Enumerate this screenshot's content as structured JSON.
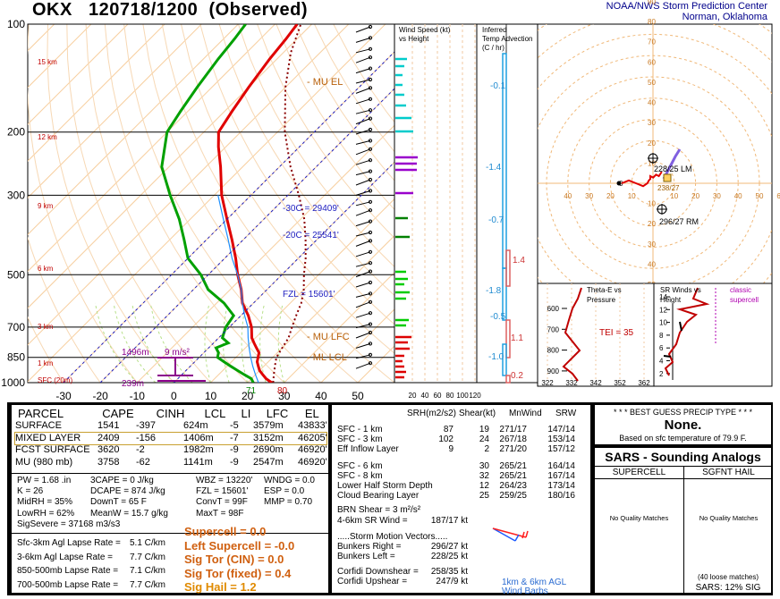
{
  "header": {
    "station": "OKX",
    "datetime": "120718/1200",
    "kind": "(Observed)",
    "org_line1": "NOAA/NWS Storm Prediction Center",
    "org_line2": "Norman, Oklahoma"
  },
  "chart_data": [
    {
      "type": "line",
      "name": "skew-t",
      "y_ticks": [
        100,
        200,
        300,
        500,
        700,
        850,
        1000
      ],
      "x_ticks": [
        -30,
        -20,
        -10,
        0,
        10,
        20,
        30,
        40,
        50
      ],
      "height_labels": [
        "15 km",
        "12 km",
        "9 km",
        "6 km",
        "3 km",
        "1 km",
        "SFC (20m)"
      ],
      "annotations": {
        "mu_el": "MU EL",
        "mu_lfc": "MU LFC",
        "ml_lcl": "ML LCL",
        "c30": "-30C = 29409'",
        "c20": "-20C = 25541'",
        "fzl": "FZL = 15601'",
        "dcape_height": "1496m",
        "dcape_rate": "9 m/s²",
        "sfc_height": "239m",
        "sfc_temp_label": "80",
        "sfc_dew_label": "71"
      },
      "series": [
        {
          "name": "",
          "color": "#e00000",
          "p": [
            1000,
            975,
            950,
            925,
            900,
            875,
            850,
            825,
            800,
            775,
            750,
            700,
            650,
            600,
            550,
            500,
            450,
            400,
            350,
            300,
            250,
            220,
            200,
            175,
            150,
            125,
            110,
            100
          ],
          "t": [
            26.6,
            24,
            22,
            20,
            18.5,
            17,
            16,
            15,
            13,
            11,
            9,
            6,
            2,
            -3,
            -7,
            -12,
            -17,
            -23,
            -30,
            -38,
            -46,
            -52,
            -56,
            -58,
            -60,
            -62,
            -63,
            -64
          ]
        },
        {
          "name": "",
          "color": "#00a000",
          "p": [
            1000,
            975,
            950,
            925,
            900,
            875,
            850,
            825,
            800,
            775,
            750,
            700,
            650,
            600,
            550,
            500,
            450,
            400,
            350,
            300,
            250,
            200,
            175,
            150,
            125,
            110,
            100
          ],
          "t": [
            21.6,
            20,
            17,
            14,
            11,
            8,
            5,
            4,
            2,
            4,
            1,
            -1,
            -2,
            -8,
            -16,
            -22,
            -30,
            -36,
            -43,
            -52,
            -62,
            -70,
            -72,
            -74,
            -76,
            -77,
            -78
          ]
        },
        {
          "name": "",
          "color": "#1e90ff",
          "p": [
            1000,
            950,
            900,
            850,
            800,
            750,
            700,
            650,
            600,
            550,
            500,
            450,
            400,
            350,
            300
          ],
          "t": [
            23,
            20,
            17,
            14,
            11,
            8,
            5,
            1,
            -3,
            -7,
            -12,
            -18,
            -24,
            -31,
            -39
          ]
        },
        {
          "name": "",
          "color": "#8b0000",
          "p": [
            1000,
            950,
            900,
            850,
            800,
            750,
            700,
            650,
            600,
            550,
            500,
            450,
            400,
            350,
            300,
            250,
            200,
            150,
            120,
            100
          ],
          "t": [
            27,
            25,
            23,
            21,
            20,
            19,
            17,
            15,
            13,
            10,
            6,
            2,
            -3,
            -9,
            -17,
            -27,
            -38,
            -50,
            -58,
            -63
          ]
        }
      ]
    },
    {
      "type": "bar",
      "name": "wind-speed",
      "title": "Wind Speed (kt)",
      "subtitle": "vs Height",
      "x_ticks": [
        20,
        40,
        60,
        80,
        100,
        120
      ]
    },
    {
      "type": "line",
      "name": "temp-advection",
      "title": "Inferred",
      "subtitle": "Temp Advection",
      "units": "(C / hr)",
      "labels": [
        "-0.1",
        "-1.4",
        "-0.7",
        "1.4",
        "-1.8",
        "-0.5",
        "1.1",
        "-1.0",
        "0.2"
      ]
    },
    {
      "type": "scatter",
      "name": "hodograph",
      "ring_labels": [
        "90",
        "80",
        "70",
        "60",
        "50",
        "40",
        "30",
        "20",
        "10",
        "0",
        "10",
        "20",
        "30",
        "40",
        "50",
        "60",
        "70",
        "80"
      ],
      "storm_labels": [
        "228/25 LM",
        "296/27 RM"
      ],
      "series": [
        {
          "name": "",
          "color": "#e00000",
          "u": [
            0,
            5,
            10,
            15,
            18,
            19,
            20,
            20,
            22,
            24,
            26,
            28
          ],
          "v": [
            0,
            2,
            0,
            -2,
            0,
            2,
            3,
            5,
            4,
            6,
            5,
            8
          ]
        }
      ]
    },
    {
      "type": "line",
      "name": "theta-e",
      "title": "Theta-E vs",
      "subtitle": "Pressure",
      "x_ticks": [
        322,
        332,
        342,
        352,
        362
      ],
      "y_ticks": [
        600,
        700,
        800,
        900
      ],
      "annotation": "TEI = 35"
    },
    {
      "type": "line",
      "name": "sr-winds",
      "title": "SR Winds vs",
      "subtitle": "Height",
      "y_ticks": [
        14,
        12,
        10,
        8,
        6,
        4,
        2
      ],
      "legend": "classic",
      "legend2": "supercell"
    }
  ],
  "parcel": {
    "headers": [
      "PARCEL",
      "CAPE",
      "CINH",
      "LCL",
      "LI",
      "LFC",
      "EL"
    ],
    "rows": [
      [
        "SURFACE",
        "1541",
        "-397",
        "624m",
        "-5",
        "3579m",
        "43833'"
      ],
      [
        "MIXED LAYER",
        "2409",
        "-156",
        "1406m",
        "-7",
        "3152m",
        "46205'"
      ],
      [
        "FCST SURFACE",
        "3620",
        "-2",
        "1982m",
        "-9",
        "2690m",
        "46920'"
      ],
      [
        "MU  (980 mb)",
        "3758",
        "-62",
        "1141m",
        "-9",
        "2547m",
        "46920'"
      ]
    ],
    "indices": [
      [
        "PW = 1.68 .in",
        "3CAPE = 0 J/kg",
        "WBZ = 13220'",
        "WNDG = 0.0"
      ],
      [
        "K = 26",
        "DCAPE = 874 J/kg",
        "FZL = 15601'",
        "ESP = 0.0"
      ],
      [
        "MidRH = 35%",
        "DownT = 65 F",
        "ConvT = 99F",
        "MMP = 0.70"
      ],
      [
        "LowRH = 62%",
        "MeanW = 15.7 g/kg",
        "MaxT = 98F",
        ""
      ]
    ],
    "sigsevere": "SigSevere = 37168 m3/s3",
    "lapse": [
      [
        "Sfc-3km Agl Lapse Rate =",
        "5.1 C/km"
      ],
      [
        "3-6km Agl Lapse Rate =",
        "7.7 C/km"
      ],
      [
        "850-500mb Lapse Rate =",
        "7.1 C/km"
      ],
      [
        "700-500mb Lapse Rate =",
        "7.7 C/km"
      ]
    ],
    "composites": [
      "Supercell = 0.0",
      "Left Supercell = -0.0",
      "Sig Tor (CIN) = 0.0",
      "Sig Tor (fixed) = 0.4",
      "Sig Hail = 1.2"
    ]
  },
  "kinematics": {
    "headers": [
      "SRH(m2/s2)",
      "Shear(kt)",
      "MnWind",
      "SRW"
    ],
    "group1": [
      [
        "SFC - 1 km",
        "87",
        "19",
        "271/17",
        "147/14"
      ],
      [
        "SFC - 3 km",
        "102",
        "24",
        "267/18",
        "153/14"
      ],
      [
        "Eff Inflow Layer",
        "9",
        "2",
        "271/20",
        "157/12"
      ]
    ],
    "group2": [
      [
        "SFC - 6 km",
        "",
        "30",
        "265/21",
        "164/14"
      ],
      [
        "SFC - 8 km",
        "",
        "32",
        "265/21",
        "167/14"
      ],
      [
        "Lower Half Storm Depth",
        "",
        "12",
        "264/23",
        "173/14"
      ],
      [
        "Cloud Bearing Layer",
        "",
        "25",
        "259/25",
        "180/16"
      ]
    ],
    "brn": "BRN Shear =  3 m²/s²",
    "srwind": [
      "4-6km SR Wind =",
      "187/17 kt"
    ],
    "storm_title": ".....Storm Motion Vectors.....",
    "bunkers": [
      [
        "Bunkers Right =",
        "296/27 kt"
      ],
      [
        "Bunkers Left =",
        "228/25 kt"
      ]
    ],
    "corfidi": [
      [
        "Corfidi Downshear =",
        "258/35 kt"
      ],
      [
        "Corfidi Upshear =",
        "247/9 kt"
      ]
    ],
    "barbs_label1": "1km & 6km AGL",
    "barbs_label2": "Wind Barbs"
  },
  "precip": {
    "title": "* * * BEST GUESS PRECIP TYPE * * *",
    "value": "None.",
    "note": "Based on sfc temperature of 79.9 F."
  },
  "sars": {
    "title": "SARS - Sounding Analogs",
    "col1": "SUPERCELL",
    "col2": "SGFNT HAIL",
    "msg1": "No Quality Matches",
    "msg2": "No Quality Matches",
    "loose": "(40 loose matches)",
    "sig": "SARS:  12% SIG"
  }
}
